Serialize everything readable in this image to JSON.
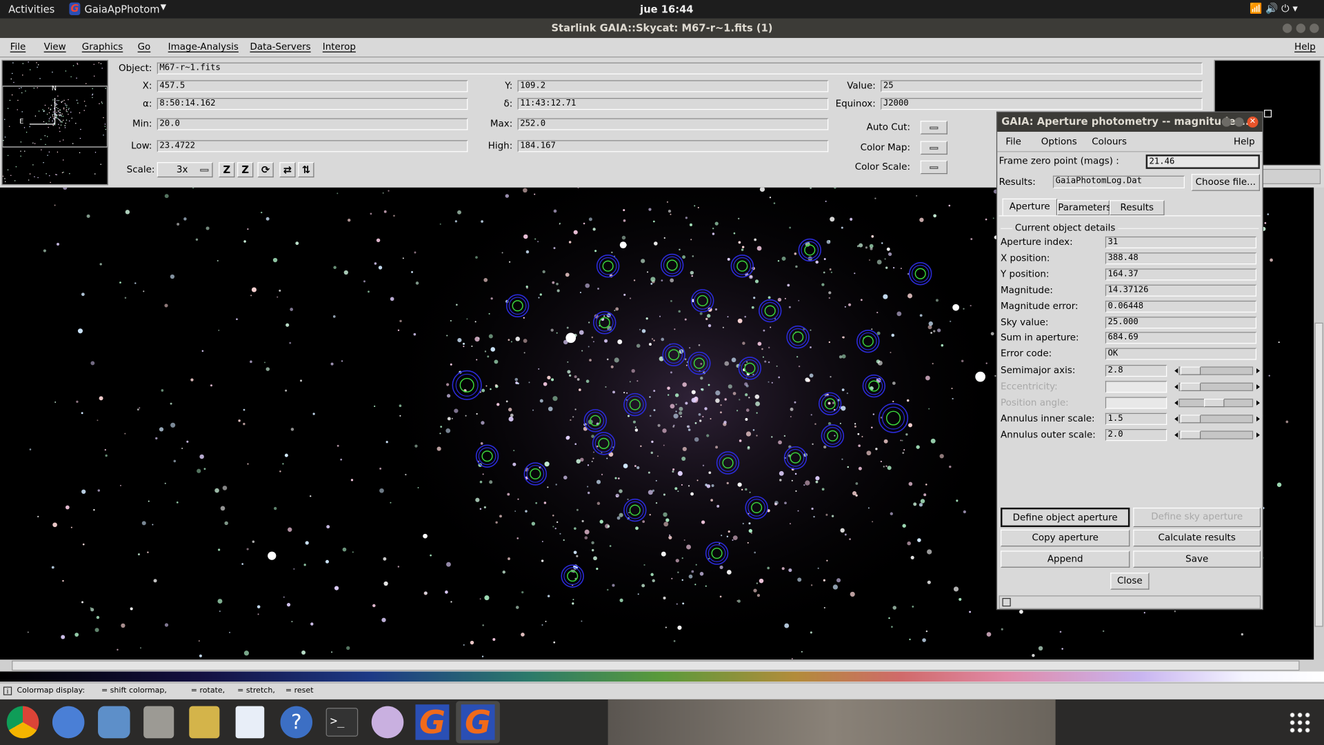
{
  "top_bar": {
    "activities": "Activities",
    "app": "GaiaApPhotom",
    "clock": "jue 16:44"
  },
  "window": {
    "title": "Starlink GAIA::Skycat: M67-r~1.fits (1)",
    "menu": [
      "File",
      "View",
      "Graphics",
      "Go",
      "Image-Analysis",
      "Data-Servers",
      "Interop",
      "Help"
    ]
  },
  "panner": {
    "north": "N",
    "east": "E"
  },
  "info": {
    "fields": [
      {
        "label": "Object:",
        "value": "M67-r~1.fits"
      },
      {
        "label": "X:",
        "value": "457.5"
      },
      {
        "label": "Y:",
        "value": "109.2"
      },
      {
        "label": "Value:",
        "value": "25"
      },
      {
        "label": "α:",
        "value": "8:50:14.162"
      },
      {
        "label": "δ:",
        "value": "11:43:12.71"
      },
      {
        "label": "Equinox:",
        "value": "J2000"
      },
      {
        "label": "Min:",
        "value": "20.0"
      },
      {
        "label": "Max:",
        "value": "252.0"
      },
      {
        "label": "Low:",
        "value": "23.4722"
      },
      {
        "label": "High:",
        "value": "184.167"
      }
    ],
    "controls": [
      "Auto Cut:",
      "Color Map:",
      "Color Scale:"
    ],
    "scale": {
      "label": "Scale:",
      "value": "3x"
    }
  },
  "status_bar": {
    "items": [
      "Colormap display:",
      "= shift colormap,",
      "= rotate,",
      "= stretch,",
      "= reset"
    ]
  },
  "dialog": {
    "title": "GAIA: Aperture photometry -- magnitudes...",
    "menu": [
      "File",
      "Options",
      "Colours",
      "Help"
    ],
    "zero_point": {
      "label": "Frame zero point (mags) :",
      "value": "21.46"
    },
    "results": {
      "label": "Results:",
      "value": "GaiaPhotomLog.Dat",
      "button": "Choose file..."
    },
    "tabs": [
      "Aperture",
      "Parameters",
      "Results"
    ],
    "group": "Current object details",
    "rows": [
      {
        "label": "Aperture index:",
        "value": "31"
      },
      {
        "label": "X position:",
        "value": "388.48"
      },
      {
        "label": "Y position:",
        "value": "164.37"
      },
      {
        "label": "Magnitude:",
        "value": "14.37126"
      },
      {
        "label": "Magnitude error:",
        "value": "0.06448"
      },
      {
        "label": "Sky value:",
        "value": "25.000"
      },
      {
        "label": "Sum in aperture:",
        "value": "684.69"
      },
      {
        "label": "Error code:",
        "value": "OK"
      }
    ],
    "sliders": [
      {
        "label": "Semimajor axis:",
        "value": "2.8"
      },
      {
        "label": "Eccentricity:",
        "disabled": true
      },
      {
        "label": "Position angle:",
        "disabled": true
      },
      {
        "label": "Annulus inner scale:",
        "value": "1.5"
      },
      {
        "label": "Annulus outer scale:",
        "value": "2.0"
      }
    ],
    "buttons": [
      "Define object aperture",
      "Define sky aperture",
      "Copy aperture",
      "Calculate results",
      "Append",
      "Save",
      "Close"
    ]
  }
}
